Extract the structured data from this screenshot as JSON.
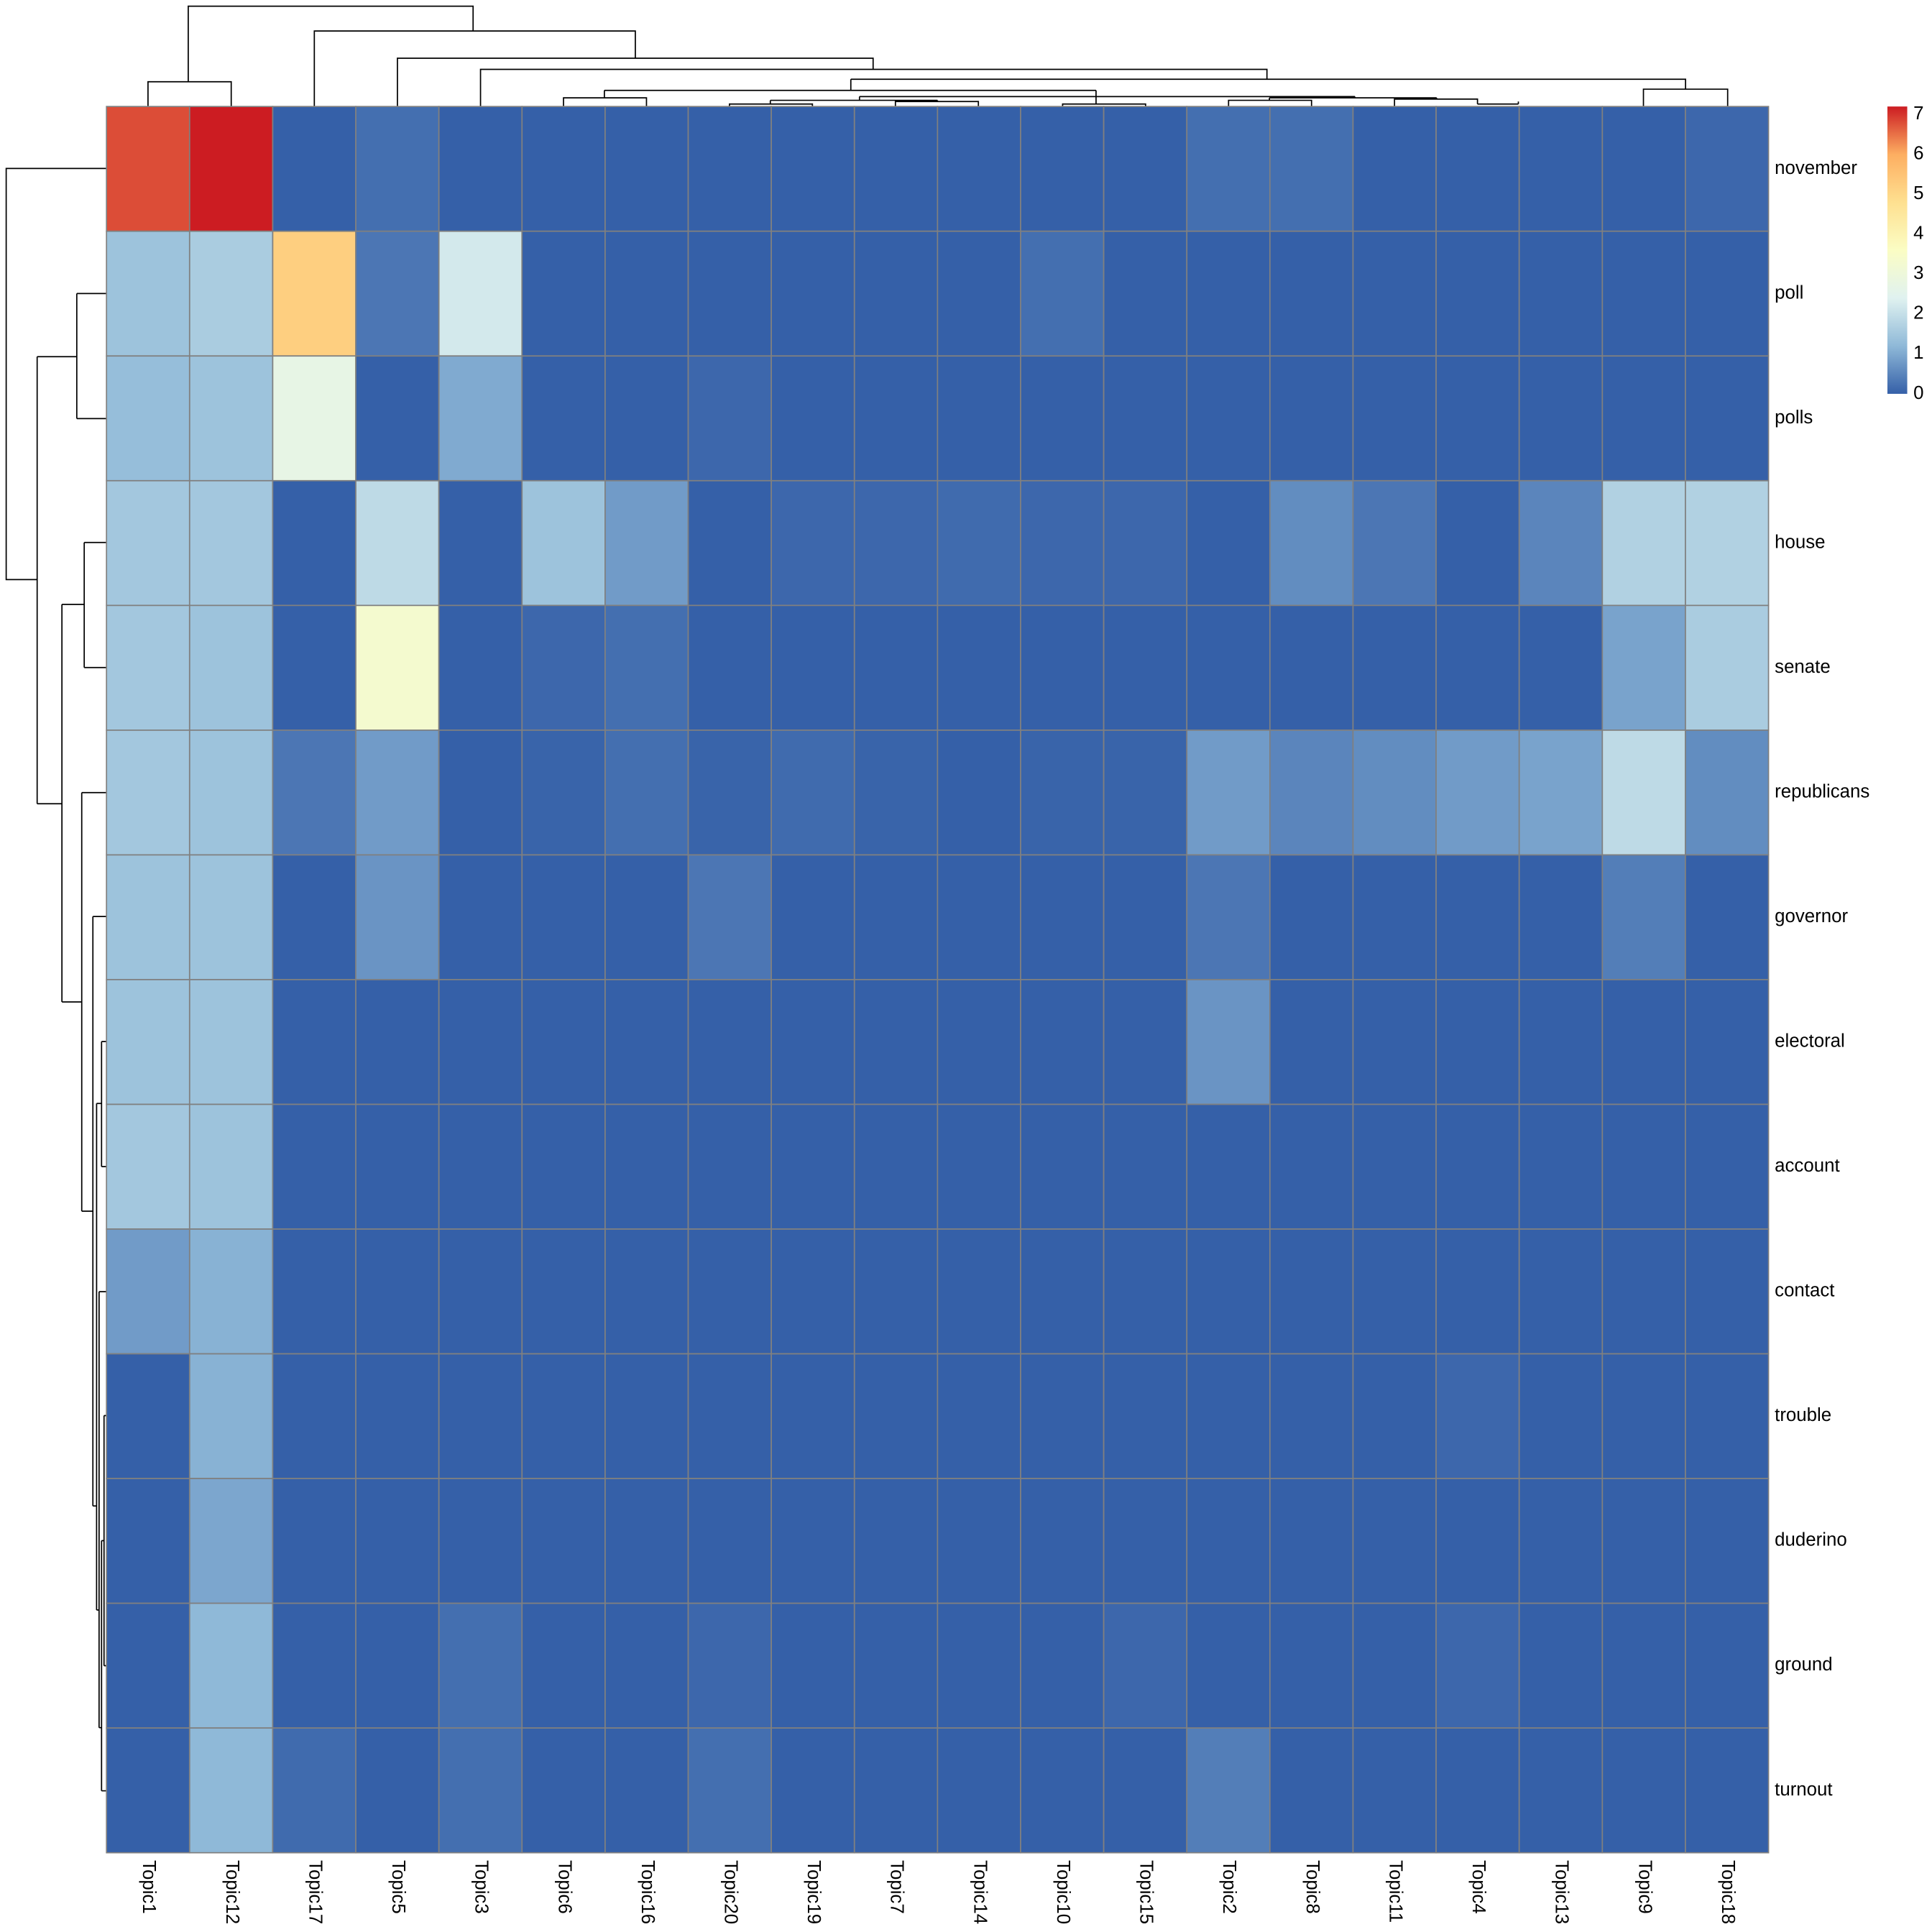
{
  "chart_data": {
    "type": "heatmap",
    "x": [
      "Topic1",
      "Topic12",
      "Topic17",
      "Topic5",
      "Topic3",
      "Topic6",
      "Topic16",
      "Topic20",
      "Topic19",
      "Topic7",
      "Topic14",
      "Topic10",
      "Topic15",
      "Topic2",
      "Topic8",
      "Topic11",
      "Topic4",
      "Topic13",
      "Topic9",
      "Topic18"
    ],
    "y": [
      "november",
      "poll",
      "polls",
      "house",
      "senate",
      "republicans",
      "governor",
      "electoral",
      "account",
      "contact",
      "trouble",
      "duderino",
      "ground",
      "turnout"
    ],
    "values": [
      [
        6.8,
        7.2,
        0,
        0.2,
        0,
        0,
        0,
        0,
        0,
        0,
        0,
        0,
        0,
        0.2,
        0.2,
        0,
        0,
        0,
        0,
        0.1
      ],
      [
        1.4,
        1.6,
        5.2,
        0.3,
        2.2,
        0,
        0,
        0,
        0,
        0,
        0,
        0.2,
        0,
        0,
        0,
        0,
        0,
        0,
        0,
        0
      ],
      [
        1.3,
        1.4,
        2.7,
        0,
        1.0,
        0,
        0,
        0.1,
        0,
        0,
        0,
        0,
        0,
        0,
        0,
        0,
        0,
        0,
        0,
        0
      ],
      [
        1.5,
        1.5,
        0,
        1.9,
        0,
        1.4,
        0.8,
        0,
        0.1,
        0.1,
        0.15,
        0.1,
        0.1,
        0,
        0.6,
        0.3,
        0,
        0.5,
        1.7,
        1.7
      ],
      [
        1.5,
        1.4,
        0,
        3.3,
        0,
        0.1,
        0.2,
        0,
        0,
        0,
        0,
        0,
        0,
        0,
        0,
        0,
        0,
        0,
        0.9,
        1.6
      ],
      [
        1.5,
        1.4,
        0.3,
        0.8,
        0,
        0.05,
        0.2,
        0.05,
        0.15,
        0.05,
        0,
        0.05,
        0.05,
        0.8,
        0.5,
        0.6,
        0.8,
        0.9,
        1.9,
        0.6
      ],
      [
        1.4,
        1.4,
        0,
        0.7,
        0,
        0,
        0,
        0.3,
        0,
        0,
        0,
        0,
        0,
        0.3,
        0,
        0,
        0,
        0,
        0.4,
        0
      ],
      [
        1.4,
        1.4,
        0,
        0,
        0,
        0,
        0,
        0,
        0,
        0,
        0,
        0,
        0,
        0.7,
        0,
        0,
        0,
        0,
        0,
        0
      ],
      [
        1.5,
        1.4,
        0,
        0,
        0,
        0,
        0,
        0,
        0,
        0,
        0,
        0,
        0,
        0,
        0,
        0,
        0,
        0,
        0,
        0
      ],
      [
        0.8,
        1.1,
        0,
        0,
        0,
        0,
        0,
        0,
        0,
        0,
        0,
        0,
        0,
        0,
        0,
        0,
        0,
        0,
        0,
        0
      ],
      [
        0,
        1.1,
        0,
        0,
        0,
        0,
        0,
        0,
        0,
        0,
        0,
        0,
        0,
        0,
        0,
        0,
        0.1,
        0,
        0,
        0
      ],
      [
        0,
        0.95,
        0,
        0,
        0,
        0,
        0,
        0,
        0,
        0,
        0,
        0,
        0,
        0,
        0,
        0,
        0,
        0,
        0,
        0
      ],
      [
        0,
        1.2,
        0,
        0,
        0.2,
        0,
        0,
        0.1,
        0,
        0,
        0,
        0,
        0.1,
        0,
        0,
        0,
        0.1,
        0,
        0,
        0
      ],
      [
        0,
        1.2,
        0.15,
        0,
        0.2,
        0,
        0,
        0.2,
        0,
        0,
        0,
        0,
        0,
        0.4,
        0,
        0,
        0,
        0,
        0,
        0
      ]
    ],
    "clim": [
      0,
      7.2
    ],
    "colorbar_ticks": [
      0,
      1,
      2,
      3,
      4,
      5,
      6,
      7
    ],
    "colors": [
      "#3560a8",
      "#8fb9d8",
      "#e0f2f0",
      "#fbfdc4",
      "#fee090",
      "#fdae61",
      "#cc1c22"
    ],
    "cell_border": "#808080"
  }
}
